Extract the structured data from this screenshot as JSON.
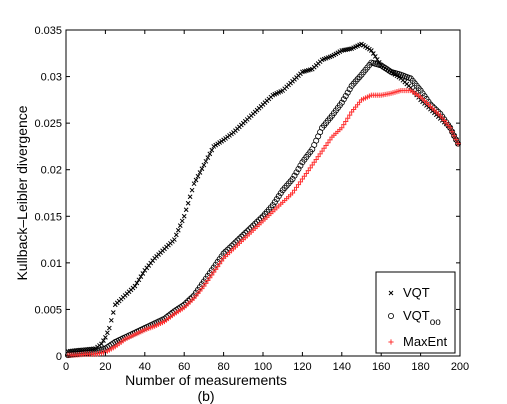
{
  "chart_data": {
    "type": "scatter",
    "xlabel": "Number of measurements",
    "ylabel": "Kullback–Leibler divergence",
    "caption": "(b)",
    "xlim": [
      0,
      200
    ],
    "ylim": [
      0,
      0.035
    ],
    "xticks": [
      "0",
      "20",
      "40",
      "60",
      "80",
      "100",
      "120",
      "140",
      "160",
      "180",
      "200"
    ],
    "yticks": [
      "0",
      "0.005",
      "0.01",
      "0.015",
      "0.02",
      "0.025",
      "0.03",
      "0.035"
    ],
    "grid": false,
    "legend_position": "bottom-right",
    "series": [
      {
        "name": "VQT",
        "marker": "x",
        "color": "#000000",
        "x": [
          1,
          5,
          10,
          15,
          18,
          20,
          22,
          25,
          30,
          35,
          40,
          45,
          50,
          55,
          60,
          65,
          70,
          75,
          80,
          85,
          90,
          95,
          100,
          105,
          110,
          115,
          120,
          125,
          130,
          135,
          140,
          145,
          150,
          155,
          160,
          165,
          170,
          175,
          180,
          185,
          190,
          195,
          199
        ],
        "y": [
          0.0005,
          0.0006,
          0.0007,
          0.0008,
          0.0013,
          0.002,
          0.003,
          0.0055,
          0.0065,
          0.0075,
          0.0092,
          0.0105,
          0.0115,
          0.0125,
          0.015,
          0.0185,
          0.0205,
          0.0225,
          0.0232,
          0.024,
          0.025,
          0.026,
          0.027,
          0.028,
          0.0285,
          0.0295,
          0.0305,
          0.0308,
          0.0318,
          0.0322,
          0.0328,
          0.033,
          0.0335,
          0.0328,
          0.0312,
          0.0305,
          0.0298,
          0.0288,
          0.0275,
          0.0265,
          0.0255,
          0.0245,
          0.0228
        ]
      },
      {
        "name": "VQT",
        "name_subscript": "oo",
        "marker": "o",
        "color": "#000000",
        "x": [
          1,
          5,
          10,
          15,
          20,
          25,
          30,
          35,
          40,
          45,
          50,
          55,
          60,
          65,
          70,
          75,
          80,
          85,
          90,
          95,
          100,
          105,
          110,
          115,
          120,
          125,
          130,
          135,
          140,
          145,
          150,
          155,
          160,
          165,
          170,
          175,
          180,
          185,
          190,
          195,
          199
        ],
        "y": [
          0.0001,
          0.0002,
          0.0003,
          0.0005,
          0.0008,
          0.0015,
          0.002,
          0.0025,
          0.003,
          0.0035,
          0.004,
          0.0048,
          0.0055,
          0.0065,
          0.008,
          0.0095,
          0.011,
          0.012,
          0.013,
          0.014,
          0.015,
          0.0162,
          0.0178,
          0.019,
          0.0208,
          0.0222,
          0.0245,
          0.0258,
          0.0272,
          0.029,
          0.0302,
          0.0315,
          0.0312,
          0.0305,
          0.0302,
          0.0298,
          0.0285,
          0.027,
          0.026,
          0.0245,
          0.0228
        ]
      },
      {
        "name": "MaxEnt",
        "marker": "+",
        "color": "#ff3333",
        "x": [
          1,
          5,
          10,
          15,
          20,
          25,
          30,
          35,
          40,
          45,
          50,
          55,
          60,
          65,
          70,
          75,
          80,
          85,
          90,
          95,
          100,
          105,
          110,
          115,
          120,
          125,
          130,
          135,
          140,
          145,
          150,
          155,
          160,
          165,
          170,
          175,
          180,
          185,
          190,
          195,
          199
        ],
        "y": [
          0.0001,
          0.0001,
          0.0002,
          0.0002,
          0.0004,
          0.001,
          0.0018,
          0.0023,
          0.0028,
          0.0032,
          0.0037,
          0.0045,
          0.0052,
          0.0062,
          0.0075,
          0.009,
          0.0105,
          0.0115,
          0.0125,
          0.0135,
          0.0145,
          0.0155,
          0.0165,
          0.0175,
          0.019,
          0.0205,
          0.022,
          0.0235,
          0.0245,
          0.0262,
          0.0275,
          0.028,
          0.028,
          0.0282,
          0.0285,
          0.0285,
          0.0278,
          0.0268,
          0.0258,
          0.0245,
          0.0228
        ]
      }
    ]
  }
}
